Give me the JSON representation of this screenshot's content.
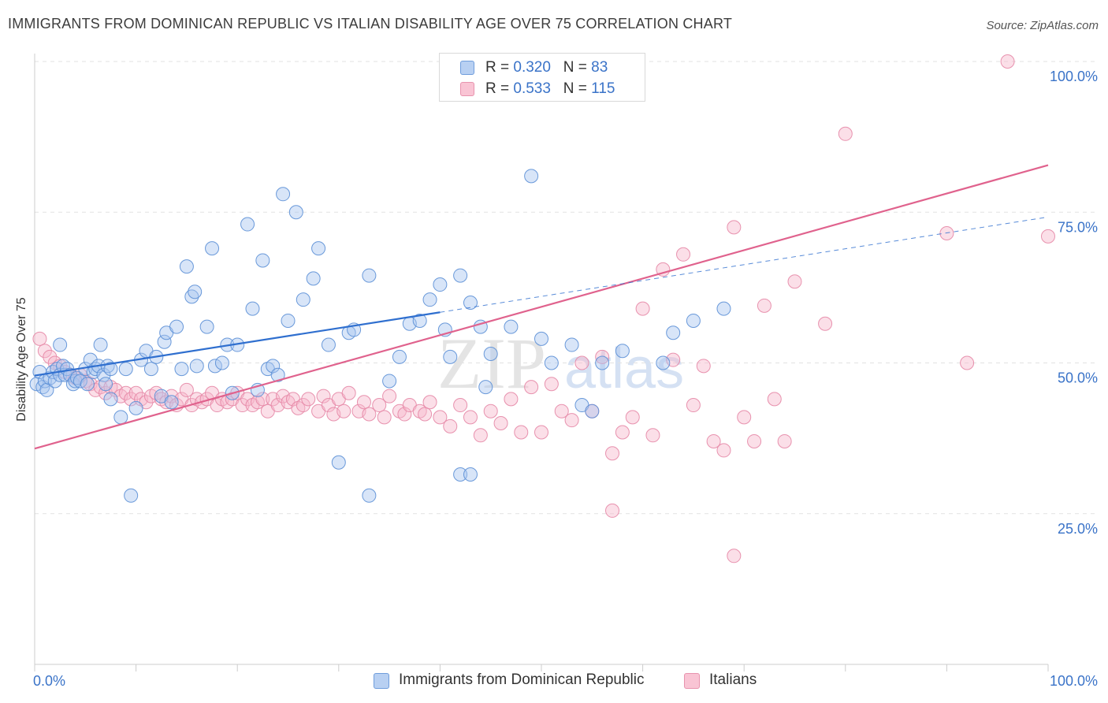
{
  "title": "IMMIGRANTS FROM DOMINICAN REPUBLIC VS ITALIAN DISABILITY AGE OVER 75 CORRELATION CHART",
  "source": "Source: ZipAtlas.com",
  "watermark": {
    "zip": "ZIP",
    "atlas": "atlas"
  },
  "legend": {
    "rows": [
      {
        "r_label": "R =",
        "r_value": "0.320",
        "n_label": "N =",
        "n_value": "83"
      },
      {
        "r_label": "R =",
        "r_value": "0.533",
        "n_label": "N =",
        "n_value": "115"
      }
    ]
  },
  "bottom_legend": [
    "Immigrants from Dominican Republic",
    "Italians"
  ],
  "colors": {
    "blue_fill": "#a9c6ef",
    "blue_stroke": "#5b8fd6",
    "blue_line": "#2f6fcf",
    "pink_fill": "#f6b8cb",
    "pink_stroke": "#e687a6",
    "pink_line": "#e0628d",
    "tick_label": "#3a73c8",
    "grid": "#e2e2e2"
  },
  "chart_data": {
    "type": "scatter",
    "title": "IMMIGRANTS FROM DOMINICAN REPUBLIC VS ITALIAN DISABILITY AGE OVER 75 CORRELATION CHART",
    "xlabel": "",
    "ylabel": "Disability Age Over 75",
    "xlim": [
      0,
      100
    ],
    "ylim": [
      0,
      100
    ],
    "x_tick_labels": [
      "0.0%",
      "100.0%"
    ],
    "y_ticks": [
      25,
      50,
      75,
      100
    ],
    "y_tick_labels": [
      "25.0%",
      "50.0%",
      "75.0%",
      "100.0%"
    ],
    "grid": true,
    "legend_position": "top-center",
    "series": [
      {
        "name": "Immigrants from Dominican Republic",
        "R": 0.32,
        "N": 83,
        "trend": {
          "x": [
            0,
            40
          ],
          "y": [
            47.9,
            58.4
          ]
        },
        "trend_extension": {
          "x": [
            40,
            100
          ],
          "y": [
            58.4,
            74.2
          ]
        },
        "points": [
          [
            0.2,
            46.5
          ],
          [
            0.5,
            48.5
          ],
          [
            0.8,
            46
          ],
          [
            1,
            47
          ],
          [
            1.2,
            45.5
          ],
          [
            1.5,
            47.5
          ],
          [
            1.8,
            48.5
          ],
          [
            2,
            47
          ],
          [
            2.2,
            49
          ],
          [
            2.5,
            48
          ],
          [
            2.8,
            49.5
          ],
          [
            3,
            48
          ],
          [
            3.2,
            49
          ],
          [
            3.5,
            48
          ],
          [
            3.8,
            46.5
          ],
          [
            4,
            47
          ],
          [
            4.2,
            47.5
          ],
          [
            4.5,
            47
          ],
          [
            5,
            49
          ],
          [
            5.2,
            46.5
          ],
          [
            5.5,
            50.5
          ],
          [
            5.8,
            48.5
          ],
          [
            6,
            49
          ],
          [
            6.3,
            49.5
          ],
          [
            6.8,
            48
          ],
          [
            7,
            46.5
          ],
          [
            7.2,
            49.5
          ],
          [
            7.5,
            49
          ],
          [
            2.5,
            53
          ],
          [
            6.5,
            53
          ],
          [
            7.5,
            44
          ],
          [
            8.5,
            41
          ],
          [
            9,
            49
          ],
          [
            9.5,
            28
          ],
          [
            10,
            42.5
          ],
          [
            10.5,
            50.5
          ],
          [
            11,
            52
          ],
          [
            11.5,
            49
          ],
          [
            12,
            51
          ],
          [
            12.5,
            44.5
          ],
          [
            12.8,
            53.5
          ],
          [
            13,
            55
          ],
          [
            13.5,
            43.5
          ],
          [
            14,
            56
          ],
          [
            14.5,
            49
          ],
          [
            15,
            66
          ],
          [
            15.5,
            61
          ],
          [
            15.8,
            61.8
          ],
          [
            16,
            49.5
          ],
          [
            17,
            56
          ],
          [
            17.5,
            69
          ],
          [
            17.8,
            49.5
          ],
          [
            18.5,
            50
          ],
          [
            19,
            53
          ],
          [
            19.5,
            45
          ],
          [
            20,
            53
          ],
          [
            21,
            73
          ],
          [
            21.5,
            59
          ],
          [
            22,
            45.5
          ],
          [
            22.5,
            67
          ],
          [
            23,
            49
          ],
          [
            23.5,
            49.5
          ],
          [
            24,
            48
          ],
          [
            24.5,
            78
          ],
          [
            25,
            57
          ],
          [
            25.8,
            75
          ],
          [
            26.5,
            60.5
          ],
          [
            27.5,
            64
          ],
          [
            28,
            69
          ],
          [
            29,
            53
          ],
          [
            30,
            33.5
          ],
          [
            31,
            55
          ],
          [
            31.5,
            55.5
          ],
          [
            33,
            64.5
          ],
          [
            35,
            47
          ],
          [
            36,
            51
          ],
          [
            37,
            56.5
          ],
          [
            38,
            57
          ],
          [
            39,
            60.5
          ],
          [
            40,
            63
          ],
          [
            40.5,
            55.5
          ],
          [
            41,
            51
          ],
          [
            42,
            64.5
          ],
          [
            43,
            60
          ],
          [
            44,
            56
          ],
          [
            44.5,
            46
          ],
          [
            45,
            51.5
          ],
          [
            47,
            56
          ],
          [
            49,
            81
          ],
          [
            50,
            54
          ],
          [
            51,
            50
          ],
          [
            53,
            53
          ],
          [
            54,
            43
          ],
          [
            55,
            42
          ],
          [
            56,
            50
          ],
          [
            58,
            52
          ],
          [
            62,
            50
          ],
          [
            63,
            55
          ],
          [
            65,
            57
          ],
          [
            68,
            59
          ],
          [
            33,
            28
          ],
          [
            42,
            31.5
          ],
          [
            43,
            31.5
          ]
        ]
      },
      {
        "name": "Italians",
        "R": 0.533,
        "N": 115,
        "trend": {
          "x": [
            0,
            100
          ],
          "y": [
            35.8,
            82.8
          ]
        },
        "points": [
          [
            0.5,
            54
          ],
          [
            1,
            52
          ],
          [
            1.5,
            51
          ],
          [
            2,
            50
          ],
          [
            2.5,
            49.5
          ],
          [
            3,
            48.5
          ],
          [
            3.5,
            48
          ],
          [
            4,
            47.5
          ],
          [
            4.5,
            48
          ],
          [
            5,
            47
          ],
          [
            5.5,
            46.5
          ],
          [
            6,
            45.5
          ],
          [
            6.5,
            46
          ],
          [
            7,
            45
          ],
          [
            7.5,
            46
          ],
          [
            8,
            45.5
          ],
          [
            8.5,
            44.5
          ],
          [
            9,
            45
          ],
          [
            9.5,
            44
          ],
          [
            10,
            45
          ],
          [
            10.5,
            44
          ],
          [
            11,
            43.5
          ],
          [
            11.5,
            44.5
          ],
          [
            12,
            45
          ],
          [
            12.5,
            44
          ],
          [
            13,
            43.5
          ],
          [
            13.5,
            44.5
          ],
          [
            14,
            43
          ],
          [
            14.5,
            44
          ],
          [
            15,
            45.5
          ],
          [
            15.5,
            43
          ],
          [
            16,
            44
          ],
          [
            16.5,
            43.5
          ],
          [
            17,
            44
          ],
          [
            17.5,
            45
          ],
          [
            18,
            43
          ],
          [
            18.5,
            44
          ],
          [
            19,
            43.5
          ],
          [
            19.5,
            44
          ],
          [
            20,
            45
          ],
          [
            20.5,
            43
          ],
          [
            21,
            44
          ],
          [
            21.5,
            43
          ],
          [
            22,
            43.5
          ],
          [
            22.5,
            44
          ],
          [
            23,
            42
          ],
          [
            23.5,
            44
          ],
          [
            24,
            43
          ],
          [
            24.5,
            44.5
          ],
          [
            25,
            43.5
          ],
          [
            25.5,
            44
          ],
          [
            26,
            42.5
          ],
          [
            26.5,
            43
          ],
          [
            27,
            44
          ],
          [
            28,
            42
          ],
          [
            28.5,
            44.5
          ],
          [
            29,
            43
          ],
          [
            29.5,
            41.5
          ],
          [
            30,
            44
          ],
          [
            30.5,
            42
          ],
          [
            31,
            45
          ],
          [
            32,
            42
          ],
          [
            32.5,
            43.5
          ],
          [
            33,
            41.5
          ],
          [
            34,
            43
          ],
          [
            34.5,
            41
          ],
          [
            35,
            44.5
          ],
          [
            36,
            42
          ],
          [
            36.5,
            41.5
          ],
          [
            37,
            43
          ],
          [
            38,
            42
          ],
          [
            38.5,
            41.5
          ],
          [
            39,
            43.5
          ],
          [
            40,
            41
          ],
          [
            41,
            39.5
          ],
          [
            42,
            43
          ],
          [
            43,
            41
          ],
          [
            44,
            38
          ],
          [
            45,
            42
          ],
          [
            46,
            40
          ],
          [
            47,
            44
          ],
          [
            48,
            38.5
          ],
          [
            49,
            46
          ],
          [
            50,
            38.5
          ],
          [
            51,
            46.5
          ],
          [
            52,
            42
          ],
          [
            53,
            40.5
          ],
          [
            54,
            50
          ],
          [
            55,
            42
          ],
          [
            56,
            51
          ],
          [
            57,
            35
          ],
          [
            58,
            38.5
          ],
          [
            59,
            41
          ],
          [
            60,
            59
          ],
          [
            61,
            38
          ],
          [
            62,
            65.5
          ],
          [
            63,
            50.5
          ],
          [
            64,
            68
          ],
          [
            65,
            43
          ],
          [
            66,
            49.5
          ],
          [
            67,
            37
          ],
          [
            68,
            35.5
          ],
          [
            69,
            72.5
          ],
          [
            70,
            41
          ],
          [
            71,
            37
          ],
          [
            72,
            59.5
          ],
          [
            73,
            44
          ],
          [
            74,
            37
          ],
          [
            75,
            63.5
          ],
          [
            78,
            56.5
          ],
          [
            80,
            88
          ],
          [
            90,
            71.5
          ],
          [
            92,
            50
          ],
          [
            96,
            100
          ],
          [
            57,
            25.5
          ],
          [
            69,
            18
          ],
          [
            100,
            71
          ]
        ]
      }
    ]
  }
}
